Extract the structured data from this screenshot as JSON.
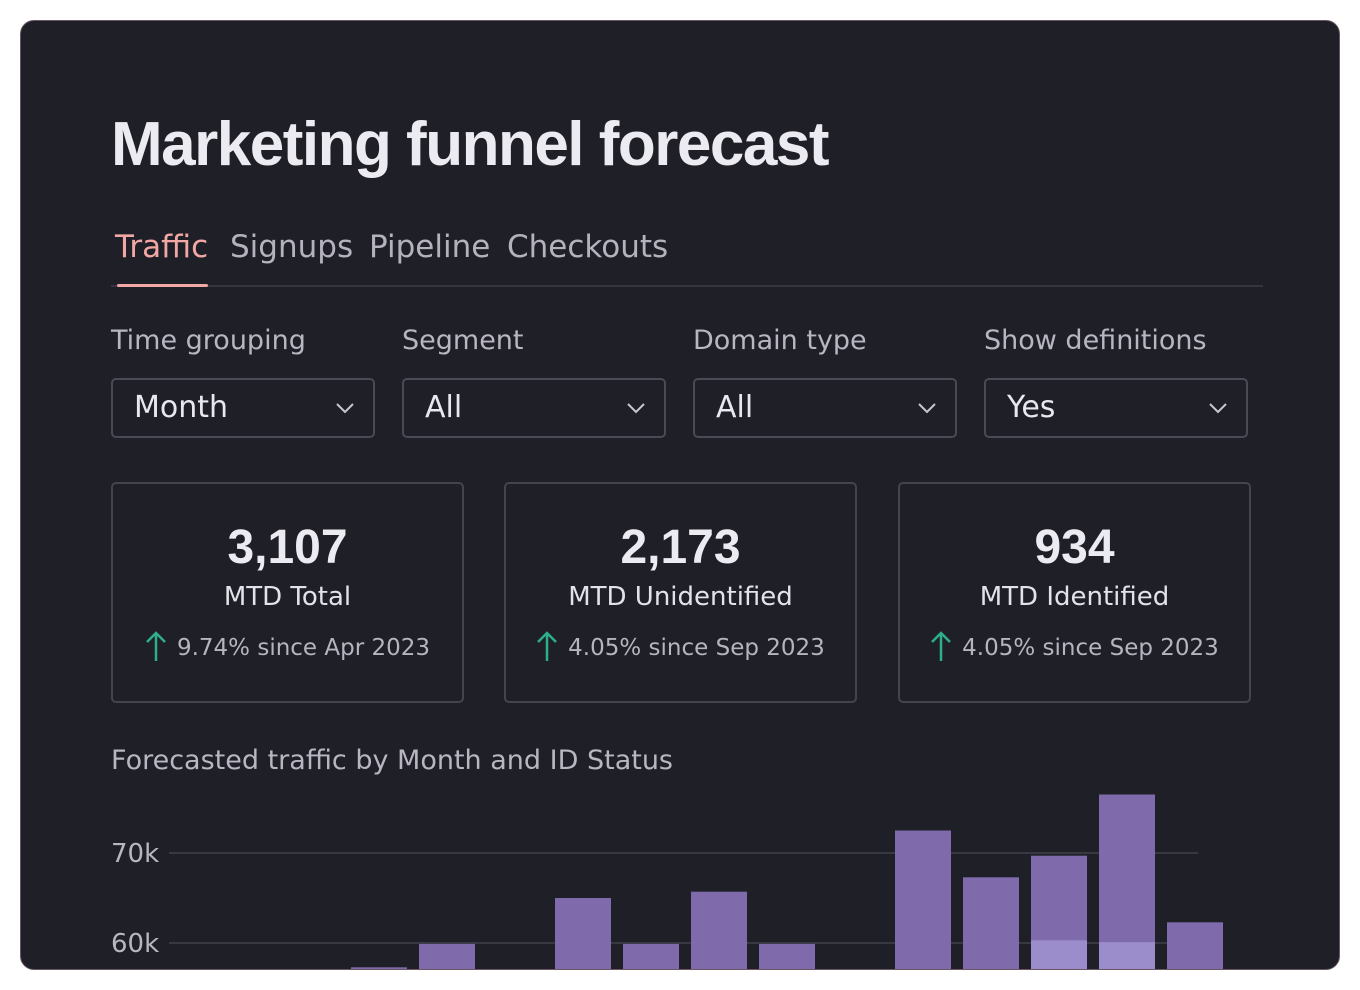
{
  "page": {
    "title": "Marketing funnel forecast"
  },
  "tabs": [
    {
      "label": "Traffic",
      "active": true
    },
    {
      "label": "Signups",
      "active": false
    },
    {
      "label": "Pipeline",
      "active": false
    },
    {
      "label": "Checkouts",
      "active": false
    }
  ],
  "filters": [
    {
      "label": "Time grouping",
      "value": "Month"
    },
    {
      "label": "Segment",
      "value": "All"
    },
    {
      "label": "Domain type",
      "value": "All"
    },
    {
      "label": "Show definitions",
      "value": "Yes"
    }
  ],
  "cards": [
    {
      "value": "3,107",
      "label": "MTD Total",
      "delta": "9.74% since Apr 2023",
      "trend": "up"
    },
    {
      "value": "2,173",
      "label": "MTD Unidentified",
      "delta": "4.05% since Sep 2023",
      "trend": "up"
    },
    {
      "value": "934",
      "label": "MTD Identified",
      "delta": "4.05% since Sep 2023",
      "trend": "up"
    }
  ],
  "icons": {
    "dropdown": "chevron-down-icon",
    "trend": "arrow-up-icon"
  },
  "colors": {
    "accent": "#f1a7a3",
    "trend_up": "#2fae8a",
    "bar_primary": "#7f6aab",
    "bar_secondary": "#9b8ccb"
  },
  "chart_title": "Forecasted traffic by Month and ID Status",
  "chart_data": {
    "type": "bar",
    "stacked": true,
    "title": "Forecasted traffic by Month and ID Status",
    "y_ticks": [
      {
        "value": 60000,
        "label": "60k"
      },
      {
        "value": 70000,
        "label": "70k"
      }
    ],
    "grid": true,
    "visible_range": [
      57000,
      76500
    ],
    "series": [
      {
        "values": [
          null,
          null,
          null,
          57300,
          59900,
          null,
          65000,
          59900,
          65700,
          59900,
          null,
          72500,
          67300,
          69700,
          76500,
          62300
        ]
      },
      {
        "values": [
          null,
          null,
          null,
          null,
          null,
          null,
          null,
          null,
          null,
          null,
          null,
          null,
          null,
          60300,
          60100,
          null
        ]
      }
    ]
  }
}
